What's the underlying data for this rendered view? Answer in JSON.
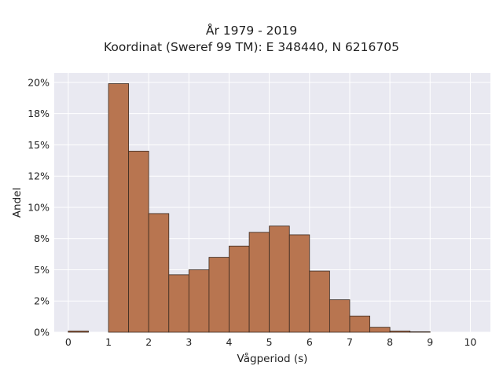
{
  "chart_data": {
    "type": "bar",
    "title": "År 1979 - 2019",
    "subtitle": "Koordinat (Sweref 99 TM): E 348440, N 6216705",
    "xlabel": "Vågperiod (s)",
    "ylabel": "Andel",
    "xlim": [
      -0.35,
      10.5
    ],
    "ylim": [
      0,
      0.2075
    ],
    "x_ticks": [
      0,
      1,
      2,
      3,
      4,
      5,
      6,
      7,
      8,
      9,
      10
    ],
    "y_ticks": [
      0,
      0.025,
      0.05,
      0.075,
      0.1,
      0.125,
      0.15,
      0.175,
      0.2
    ],
    "y_tick_labels": [
      "0%",
      "2%",
      "5%",
      "8%",
      "10%",
      "12%",
      "15%",
      "18%",
      "20%"
    ],
    "bin_width": 0.5,
    "bins": [
      {
        "x0": 0.0,
        "value": 0.001
      },
      {
        "x0": 1.0,
        "value": 0.199
      },
      {
        "x0": 1.5,
        "value": 0.145
      },
      {
        "x0": 2.0,
        "value": 0.095
      },
      {
        "x0": 2.5,
        "value": 0.046
      },
      {
        "x0": 3.0,
        "value": 0.05
      },
      {
        "x0": 3.5,
        "value": 0.06
      },
      {
        "x0": 4.0,
        "value": 0.069
      },
      {
        "x0": 4.5,
        "value": 0.08
      },
      {
        "x0": 5.0,
        "value": 0.085
      },
      {
        "x0": 5.5,
        "value": 0.078
      },
      {
        "x0": 6.0,
        "value": 0.049
      },
      {
        "x0": 6.5,
        "value": 0.026
      },
      {
        "x0": 7.0,
        "value": 0.013
      },
      {
        "x0": 7.5,
        "value": 0.004
      },
      {
        "x0": 8.0,
        "value": 0.001
      },
      {
        "x0": 8.5,
        "value": 0.0004
      }
    ],
    "grid": true,
    "legend": "none",
    "colors": {
      "bar_fill": "#b87550",
      "bar_stroke": "#3a2a20",
      "plot_background": "#e9e9f1",
      "grid": "#ffffff"
    }
  }
}
